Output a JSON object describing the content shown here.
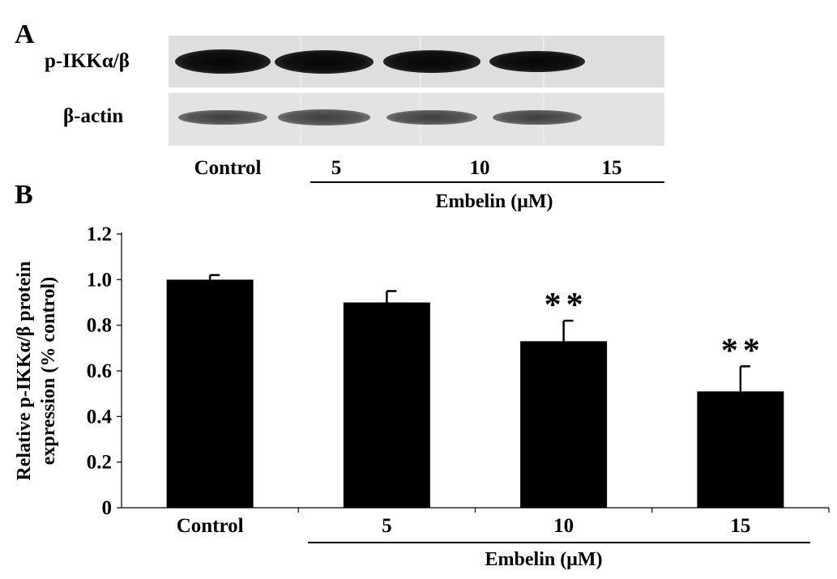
{
  "panel_a": {
    "letter": "A",
    "blots": [
      {
        "label": "p-IKKα/β",
        "intensities": [
          1.0,
          0.95,
          0.86,
          0.84
        ]
      },
      {
        "label": "β-actin",
        "intensities": [
          0.6,
          0.62,
          0.6,
          0.6
        ]
      }
    ],
    "lanes": [
      "Control",
      "5",
      "10",
      "15"
    ],
    "group_label": "Embelin (μM)"
  },
  "panel_b": {
    "letter": "B",
    "group_label": "Embelin (μM)"
  },
  "chart_data": {
    "type": "bar",
    "categories": [
      "Control",
      "5",
      "10",
      "15"
    ],
    "values": [
      1.0,
      0.9,
      0.73,
      0.51
    ],
    "errors": [
      0.02,
      0.05,
      0.09,
      0.11
    ],
    "annotations": [
      "",
      "",
      "**",
      "**"
    ],
    "ylabel": [
      "Relative p-IKKα/β protein",
      "expression (% control)"
    ],
    "xlabel": "Embelin (μM)",
    "ylim": [
      0,
      1.2
    ],
    "yticks": [
      "0",
      "0.2",
      "0.4",
      "0.6",
      "0.8",
      "1.0",
      "1.2"
    ],
    "bar_color": "#000000",
    "grid": false
  }
}
